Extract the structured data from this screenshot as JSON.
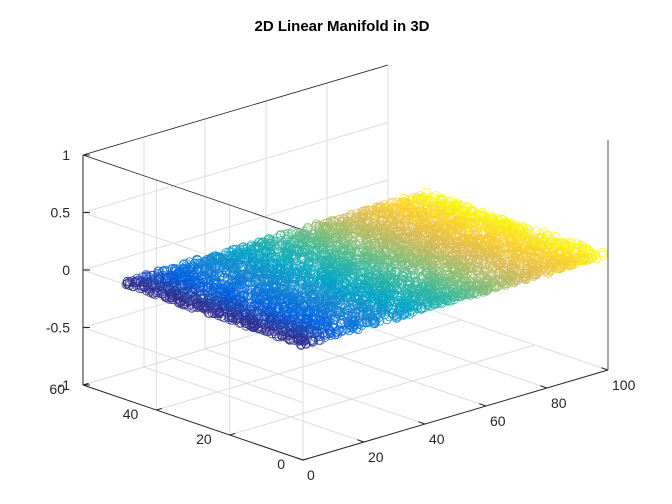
{
  "chart_data": {
    "type": "scatter",
    "title": "2D Linear Manifold in 3D",
    "xlabel": "",
    "ylabel": "",
    "zlabel": "",
    "xlim": [
      0,
      100
    ],
    "ylim": [
      0,
      60
    ],
    "zlim": [
      -1,
      1
    ],
    "x_ticks": [
      "0",
      "20",
      "40",
      "60",
      "80",
      "100"
    ],
    "y_ticks": [
      "0",
      "20",
      "40",
      "60"
    ],
    "z_ticks": [
      "-1",
      "-0.5",
      "0",
      "0.5",
      "1"
    ],
    "grid": true,
    "marker": "open-circle",
    "colormap": "parula",
    "colormap_stops": [
      "#352a87",
      "#0363e1",
      "#1485d4",
      "#06a7c6",
      "#38b99e",
      "#92bf73",
      "#d9ba56",
      "#fcce2e",
      "#f9fb0e"
    ],
    "points_description": "uniformly scattered over x in [0,100], y in [0,50], z = 0 plane; color varies with x",
    "x_extent": [
      0,
      100
    ],
    "y_extent": [
      0,
      50
    ],
    "z_value": 0
  }
}
